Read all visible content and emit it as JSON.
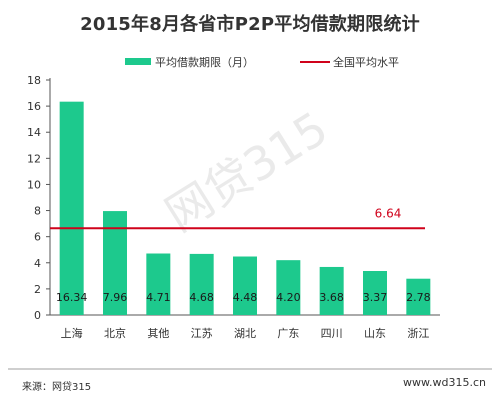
{
  "title": "2015年8月各省市P2P平均借款期限统计",
  "watermark": "网贷315",
  "footer": {
    "source": "来源：网贷315",
    "site": "www.wd315.cn"
  },
  "colors": {
    "bar": "#1dc98d",
    "average_line": "#d0021b",
    "average_label": "#d0021b",
    "axis": "#555555"
  },
  "chart_data": {
    "type": "bar",
    "title": "2015年8月各省市P2P平均借款期限统计",
    "categories": [
      "上海",
      "北京",
      "其他",
      "江苏",
      "湖北",
      "广东",
      "四川",
      "山东",
      "浙江"
    ],
    "series": [
      {
        "name": "平均借款期限（月）",
        "values": [
          16.34,
          7.96,
          4.71,
          4.68,
          4.48,
          4.2,
          3.68,
          3.37,
          2.78
        ],
        "labels": [
          "16.34",
          "7.96",
          "4.71",
          "4.68",
          "4.48",
          "4.20",
          "3.68",
          "3.37",
          "2.78"
        ]
      }
    ],
    "reference_line": {
      "name": "全国平均水平",
      "value": 6.64,
      "label": "6.64"
    },
    "ylim": [
      0,
      18
    ],
    "yticks": [
      0,
      2,
      4,
      6,
      8,
      10,
      12,
      14,
      16,
      18
    ],
    "grid": false,
    "legend_position": "top"
  }
}
